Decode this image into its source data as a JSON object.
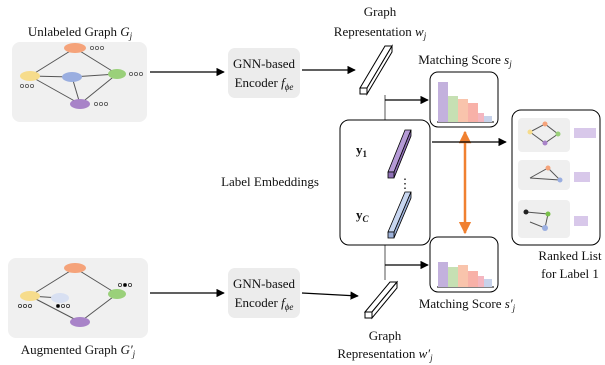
{
  "top_graph": {
    "label": "Unlabeled Graph",
    "symbol": "G",
    "sub": "j"
  },
  "bottom_graph": {
    "label": "Augmented Graph",
    "symbol": "G′",
    "sub": "j"
  },
  "encoders": [
    {
      "line1": "GNN-based",
      "line2": "Encoder",
      "symbol": "f",
      "sub": "ϕe"
    },
    {
      "line1": "GNN-based",
      "line2": "Encoder",
      "symbol": "f",
      "sub": "ϕe"
    }
  ],
  "representations": [
    {
      "line1": "Graph",
      "line2": "Representation",
      "symbol": "w",
      "sub": "j"
    },
    {
      "line1": "Graph",
      "line2": "Representation",
      "symbol": "w′",
      "sub": "j"
    }
  ],
  "matching_scores": [
    {
      "label": "Matching Score",
      "symbol": "s",
      "sub": "j"
    },
    {
      "label": "Matching Score",
      "symbol": "s′",
      "sub": "j"
    }
  ],
  "label_embeddings": {
    "label": "Label Embeddings",
    "first": {
      "symbol": "y",
      "sub": "1"
    },
    "ellipsis": "⋮",
    "last": {
      "symbol": "y",
      "sub": "C"
    }
  },
  "ranked_list": {
    "line1": "Ranked List",
    "line2": "for Label 1"
  }
}
